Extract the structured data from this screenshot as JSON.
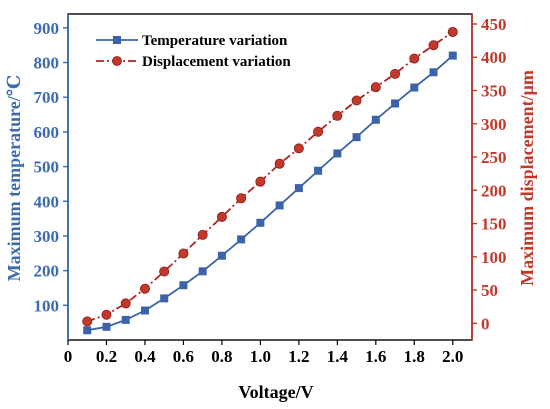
{
  "chart_data": {
    "type": "line",
    "title": "",
    "xlabel": "Voltage/V",
    "ylabel_left": "Maximum temperature/℃",
    "ylabel_right": "Maximum displacement/μm",
    "xlim": [
      0,
      2.1
    ],
    "ylim_left": [
      0,
      940
    ],
    "ylim_right": [
      -25,
      465
    ],
    "x_ticks": [
      0,
      0.2,
      0.4,
      0.6,
      0.8,
      1.0,
      1.2,
      1.4,
      1.6,
      1.8,
      2.0
    ],
    "x_tick_labels": [
      "0",
      "0.2",
      "0.4",
      "0.6",
      "0.8",
      "1.0",
      "1.2",
      "1.4",
      "1.6",
      "1.8",
      "2.0"
    ],
    "y_left_ticks": [
      100,
      200,
      300,
      400,
      500,
      600,
      700,
      800,
      900
    ],
    "y_right_ticks": [
      0,
      50,
      100,
      150,
      200,
      250,
      300,
      350,
      400,
      450
    ],
    "grid": false,
    "legend_position": "top-left",
    "colors": {
      "left_axis": "#3C6BB0",
      "right_axis": "#C0392B",
      "temperature": "#3C62A8",
      "displacement": "#B22222"
    },
    "x": [
      0.1,
      0.2,
      0.3,
      0.4,
      0.5,
      0.6,
      0.7,
      0.8,
      0.9,
      1.0,
      1.1,
      1.2,
      1.3,
      1.4,
      1.5,
      1.6,
      1.7,
      1.8,
      1.9,
      2.0
    ],
    "series": [
      {
        "name": "Temperature variation",
        "axis": "left",
        "marker": "square",
        "line_style": "solid",
        "values": [
          28,
          38,
          58,
          85,
          120,
          158,
          198,
          243,
          290,
          338,
          388,
          438,
          488,
          538,
          585,
          635,
          682,
          728,
          772,
          820
        ]
      },
      {
        "name": "Displacement variation",
        "axis": "right",
        "marker": "circle",
        "line_style": "dash-dot",
        "values": [
          3,
          13,
          30,
          52,
          78,
          105,
          133,
          160,
          188,
          213,
          240,
          263,
          288,
          312,
          335,
          355,
          375,
          398,
          418,
          438
        ]
      }
    ]
  }
}
